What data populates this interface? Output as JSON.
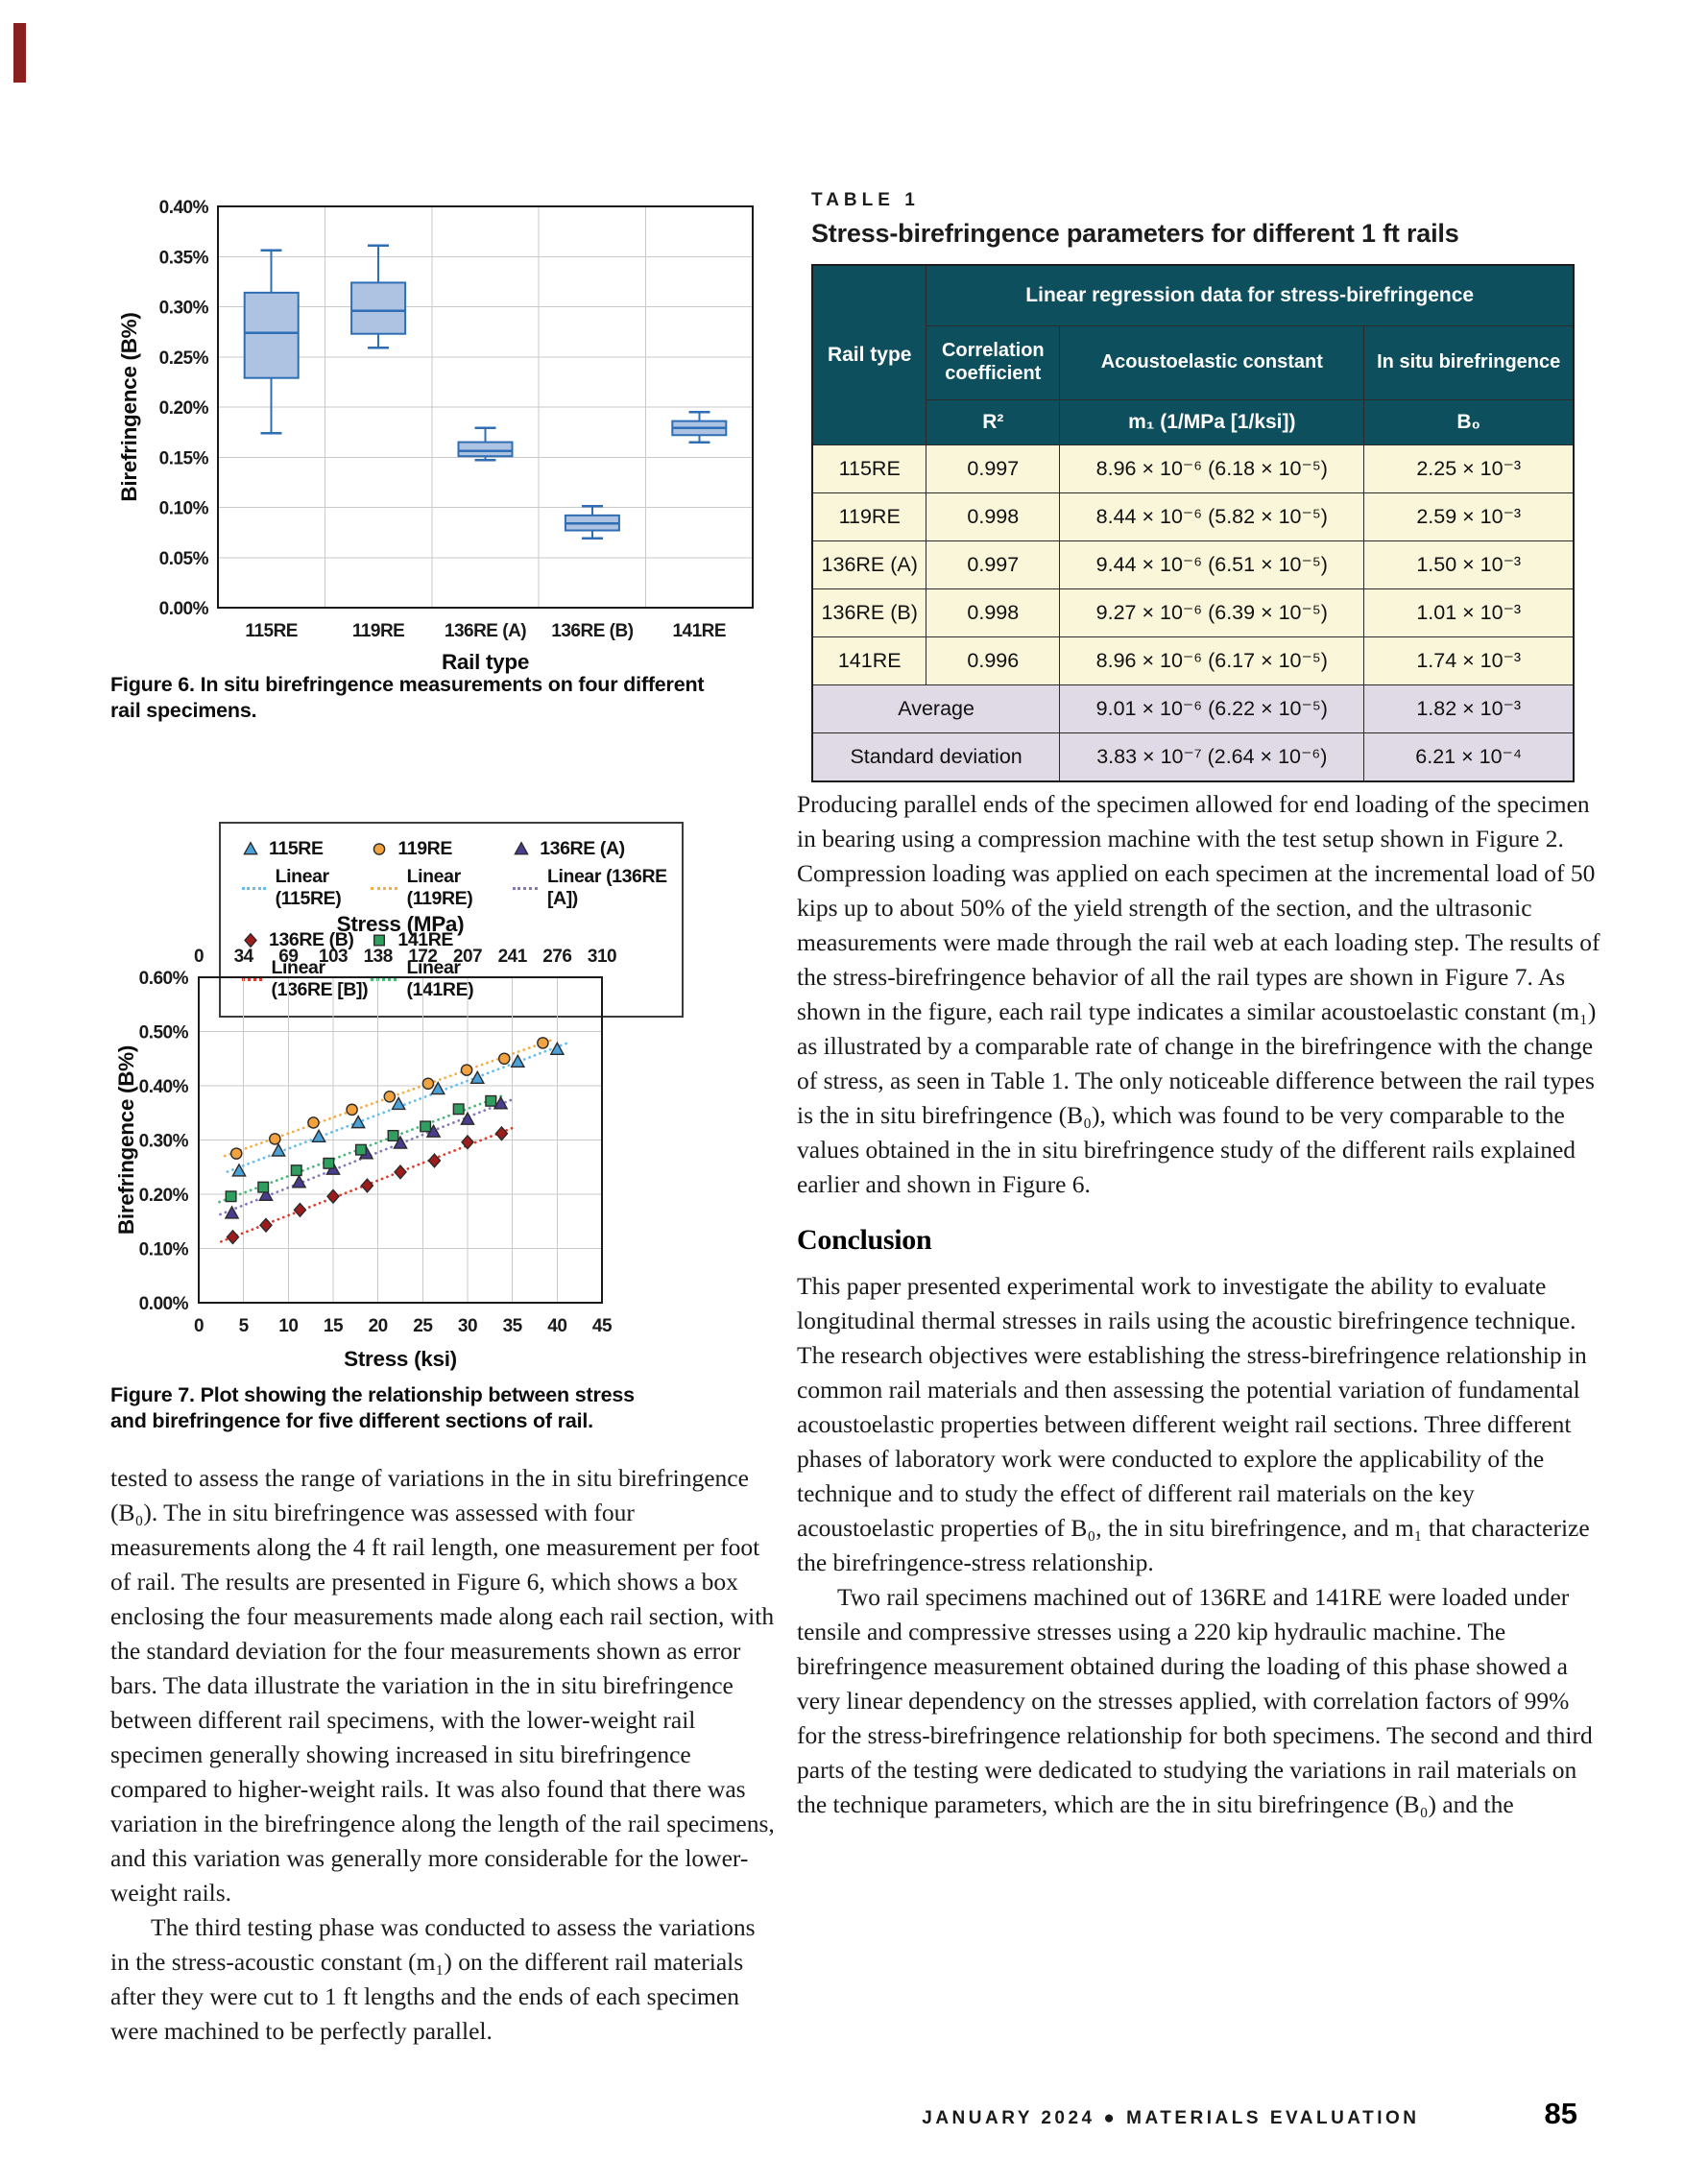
{
  "figure6": {
    "caption": "Figure 6. In situ birefringence measurements on four different rail specimens.",
    "chart_data": {
      "type": "boxplot",
      "categories": [
        "115RE",
        "119RE",
        "136RE (A)",
        "136RE (B)",
        "141RE"
      ],
      "xlabel": "Rail type",
      "ylabel": "Birefringence (B%)",
      "ylim": [
        0,
        0.4
      ],
      "y_tick_step": 0.05,
      "grid": true,
      "box_fill": "#aec2e2",
      "box_stroke": "#2f6eb5",
      "boxes": [
        {
          "whisker_low": 0.174,
          "q1": 0.229,
          "median": 0.274,
          "q3": 0.314,
          "whisker_high": 0.356
        },
        {
          "whisker_low": 0.259,
          "q1": 0.273,
          "median": 0.296,
          "q3": 0.324,
          "whisker_high": 0.361
        },
        {
          "whisker_low": 0.147,
          "q1": 0.151,
          "median": 0.156,
          "q3": 0.165,
          "whisker_high": 0.179
        },
        {
          "whisker_low": 0.069,
          "q1": 0.077,
          "median": 0.084,
          "q3": 0.092,
          "whisker_high": 0.101
        },
        {
          "whisker_low": 0.165,
          "q1": 0.172,
          "median": 0.179,
          "q3": 0.186,
          "whisker_high": 0.195
        }
      ]
    }
  },
  "figure7": {
    "caption": "Figure 7. Plot showing the relationship between stress and birefringence for five different sections of rail.",
    "legend": [
      {
        "label": "115RE",
        "linear_label": "Linear (115RE)",
        "marker": "triangle",
        "marker_color": "#4aa2d9",
        "line_color": "#63bdf0"
      },
      {
        "label": "119RE",
        "linear_label": "Linear (119RE)",
        "marker": "circle",
        "marker_color": "#f2a340",
        "line_color": "#f5ad42"
      },
      {
        "label": "136RE (A)",
        "linear_label": "Linear (136RE [A])",
        "marker": "triangle",
        "marker_color": "#4a3d8f",
        "line_color": "#8677bd"
      },
      {
        "label": "136RE (B)",
        "linear_label": "Linear (136RE [B])",
        "marker": "diamond",
        "marker_color": "#9e1c1c",
        "line_color": "#e23b2e"
      },
      {
        "label": "141RE",
        "linear_label": "Linear (141RE)",
        "marker": "square",
        "marker_color": "#2f9e5f",
        "line_color": "#49b877"
      }
    ],
    "chart_data": {
      "type": "scatter",
      "top_xlabel": "Stress (MPa)",
      "top_xticks": [
        0,
        34,
        69,
        103,
        138,
        172,
        207,
        241,
        276,
        310
      ],
      "xlabel": "Stress (ksi)",
      "xticks": [
        0,
        5,
        10,
        15,
        20,
        25,
        30,
        35,
        40,
        45
      ],
      "xlim": [
        0,
        45
      ],
      "ylabel": "Birefringence (B%)",
      "ylim": [
        0,
        0.6
      ],
      "y_tick_step": 0.1,
      "grid": true,
      "trendlines": "linear, dotted, per series",
      "series": [
        {
          "name": "115RE",
          "marker": "triangle",
          "color": "#4aa2d9",
          "line_color": "#63bdf0",
          "points": [
            [
              4.5,
              0.243
            ],
            [
              8.9,
              0.28
            ],
            [
              13.4,
              0.306
            ],
            [
              17.8,
              0.332
            ],
            [
              22.3,
              0.366
            ],
            [
              26.7,
              0.394
            ],
            [
              31.1,
              0.414
            ],
            [
              35.6,
              0.444
            ],
            [
              40.0,
              0.467
            ]
          ]
        },
        {
          "name": "119RE",
          "marker": "circle",
          "color": "#f2a340",
          "line_color": "#f5ad42",
          "points": [
            [
              4.2,
              0.275
            ],
            [
              8.5,
              0.302
            ],
            [
              12.8,
              0.332
            ],
            [
              17.1,
              0.356
            ],
            [
              21.3,
              0.38
            ],
            [
              25.6,
              0.404
            ],
            [
              29.9,
              0.429
            ],
            [
              34.1,
              0.45
            ],
            [
              38.4,
              0.479
            ]
          ]
        },
        {
          "name": "136RE (A)",
          "marker": "triangle",
          "color": "#4a3d8f",
          "line_color": "#8677bd",
          "points": [
            [
              3.7,
              0.165
            ],
            [
              7.5,
              0.198
            ],
            [
              11.2,
              0.222
            ],
            [
              15.0,
              0.246
            ],
            [
              18.7,
              0.275
            ],
            [
              22.5,
              0.294
            ],
            [
              26.2,
              0.315
            ],
            [
              30.0,
              0.338
            ],
            [
              33.7,
              0.367
            ]
          ]
        },
        {
          "name": "136RE (B)",
          "marker": "diamond",
          "color": "#9e1c1c",
          "line_color": "#e23b2e",
          "points": [
            [
              3.8,
              0.121
            ],
            [
              7.5,
              0.143
            ],
            [
              11.3,
              0.171
            ],
            [
              15.0,
              0.196
            ],
            [
              18.8,
              0.216
            ],
            [
              22.5,
              0.241
            ],
            [
              26.3,
              0.262
            ],
            [
              30.0,
              0.296
            ],
            [
              33.8,
              0.312
            ]
          ]
        },
        {
          "name": "141RE",
          "marker": "square",
          "color": "#2f9e5f",
          "line_color": "#49b877",
          "points": [
            [
              3.6,
              0.196
            ],
            [
              7.2,
              0.213
            ],
            [
              10.9,
              0.244
            ],
            [
              14.5,
              0.257
            ],
            [
              18.1,
              0.282
            ],
            [
              21.7,
              0.308
            ],
            [
              25.3,
              0.325
            ],
            [
              29.0,
              0.357
            ],
            [
              32.6,
              0.372
            ]
          ]
        }
      ]
    }
  },
  "table1": {
    "label": "TABLE 1",
    "title": "Stress-birefringence parameters for different 1 ft rails",
    "header": {
      "rail_type": "Rail type",
      "group": "Linear regression data for stress-birefringence",
      "col_correlation": "Correlation coefficient",
      "col_acoustoelastic": "Acoustoelastic constant",
      "col_insitu": "In situ birefringence",
      "unit_correlation": "R²",
      "unit_acoustoelastic": "m₁ (1/MPa [1/ksi])",
      "unit_insitu": "B₀"
    },
    "rows": [
      [
        "115RE",
        "0.997",
        "8.96 × 10⁻⁶ (6.18 × 10⁻⁵)",
        "2.25 × 10⁻³"
      ],
      [
        "119RE",
        "0.998",
        "8.44 × 10⁻⁶ (5.82 × 10⁻⁵)",
        "2.59 × 10⁻³"
      ],
      [
        "136RE (A)",
        "0.997",
        "9.44 × 10⁻⁶ (6.51 × 10⁻⁵)",
        "1.50 × 10⁻³"
      ],
      [
        "136RE (B)",
        "0.998",
        "9.27 × 10⁻⁶ (6.39 × 10⁻⁵)",
        "1.01 × 10⁻³"
      ],
      [
        "141RE",
        "0.996",
        "8.96 × 10⁻⁶ (6.17 × 10⁻⁵)",
        "1.74 × 10⁻³"
      ]
    ],
    "summary_rows": [
      [
        "Average",
        "9.01 × 10⁻⁶ (6.22 × 10⁻⁵)",
        "1.82 × 10⁻³"
      ],
      [
        "Standard deviation",
        "3.83 × 10⁻⁷ (2.64 × 10⁻⁶)",
        "6.21 × 10⁻⁴"
      ]
    ],
    "colors": {
      "header_bg": "#0e4f5e",
      "row_bg": "#faf6da",
      "summary_bg": "#dfdae5"
    }
  },
  "left_column": {
    "para1": "tested to assess the range of variations in the in situ birefringence (B₀). The in situ birefringence was assessed with four measurements along the 4 ft rail length, one measurement per foot of rail. The results are presented in Figure 6, which shows a box enclosing the four measurements made along each rail section, with the standard deviation for the four measurements shown as error bars. The data illustrate the variation in the in situ birefringence between different rail specimens, with the lower-weight rail specimen generally showing increased in situ birefringence compared to higher-weight rails. It was also found that there was variation in the birefringence along the length of the rail specimens, and this variation was generally more considerable for the lower-weight rails.",
    "para2": "The third testing phase was conducted to assess the variations in the stress-acoustic constant (m₁) on the different rail materials after they were cut to 1 ft lengths and the ends of each specimen were machined to be perfectly parallel."
  },
  "right_column": {
    "para1": "Producing parallel ends of the specimen allowed for end loading of the specimen in bearing using a compression machine with the test setup shown in Figure 2. Compression loading was applied on each specimen at the incremental load of 50 kips up to about 50% of the yield strength of the section, and the ultrasonic measurements were made through the rail web at each loading step. The results of the stress-birefringence behavior of all the rail types are shown in Figure 7. As shown in the figure, each rail type indicates a similar acoustoelastic constant (m₁) as illustrated by a comparable rate of change in the birefringence with the change of stress, as seen in Table 1. The only noticeable difference between the rail types is the in situ birefringence (B₀), which was found to be very comparable to the values obtained in the in situ birefringence study of the different rails explained earlier and shown in Figure 6.",
    "heading": "Conclusion",
    "para2": "This paper presented experimental work to investigate the ability to evaluate longitudinal thermal stresses in rails using the acoustic birefringence technique. The research objectives were establishing the stress-birefringence relationship in common rail materials and then assessing the potential variation of fundamental acoustoelastic properties between different weight rail sections. Three different phases of laboratory work were conducted to explore the applicability of the technique and to study the effect of different rail materials on the key acoustoelastic properties of B₀, the in situ birefringence, and m₁ that characterize the birefringence-stress relationship.",
    "para3": "Two rail specimens machined out of 136RE and 141RE were loaded under tensile and compressive stresses using a 220 kip hydraulic machine. The birefringence measurement obtained during the loading of this phase showed a very linear dependency on the stresses applied, with correlation factors of 99% for the stress-birefringence relationship for both specimens. The second and third parts of the testing were dedicated to studying the variations in rail materials on the technique parameters, which are the in situ birefringence (B₀) and the"
  },
  "footer": {
    "journal_line": "JANUARY 2024 ● MATERIALS EVALUATION",
    "page_number": "85"
  },
  "accent_color": "#8a201d"
}
